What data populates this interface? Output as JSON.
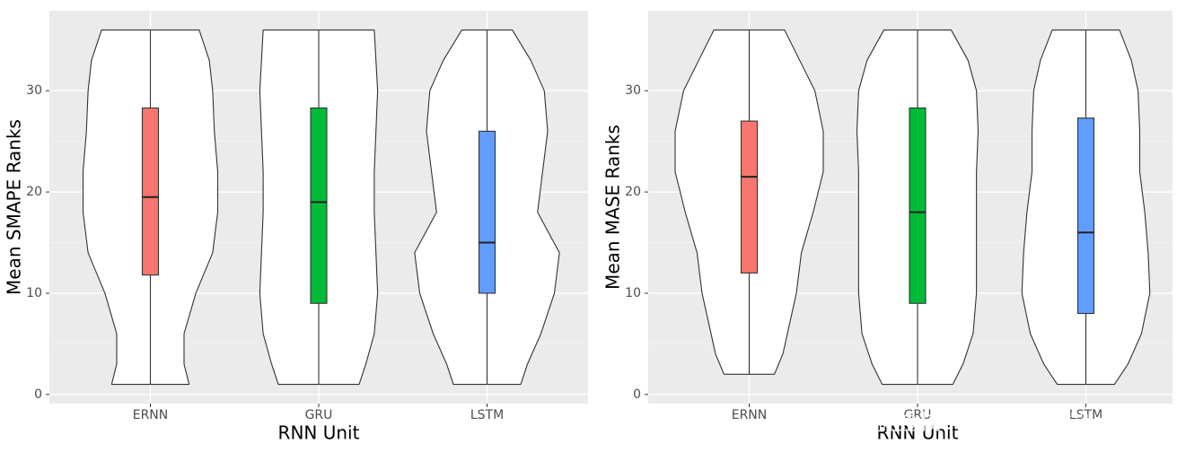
{
  "chart_data": [
    {
      "type": "violin",
      "ylabel": "Mean SMAPE Ranks",
      "xlabel": "RNN Unit",
      "categories": [
        "ERNN",
        "GRU",
        "LSTM"
      ],
      "colors": [
        "#F8766D",
        "#00BA38",
        "#619CFF"
      ],
      "ylim": [
        -0.9,
        37.9
      ],
      "yticks": [
        0,
        10,
        20,
        30
      ],
      "grid": true,
      "boxes": [
        {
          "min": 1,
          "q1": 11.8,
          "median": 19.5,
          "q3": 28.3,
          "max": 36
        },
        {
          "min": 1,
          "q1": 9,
          "median": 19,
          "q3": 28.3,
          "max": 36
        },
        {
          "min": 1,
          "q1": 10,
          "median": 15,
          "q3": 26,
          "max": 36
        }
      ],
      "density": [
        {
          "y": [
            1,
            3,
            6,
            10,
            14,
            18,
            22,
            26,
            30,
            33,
            36
          ],
          "width": [
            0.23,
            0.2,
            0.2,
            0.27,
            0.37,
            0.4,
            0.4,
            0.38,
            0.37,
            0.35,
            0.29
          ]
        },
        {
          "y": [
            1,
            3,
            6,
            10,
            14,
            18,
            22,
            26,
            30,
            33,
            36
          ],
          "width": [
            0.24,
            0.28,
            0.33,
            0.35,
            0.34,
            0.33,
            0.33,
            0.34,
            0.35,
            0.34,
            0.33
          ]
        },
        {
          "y": [
            1,
            3,
            6,
            10,
            14,
            18,
            22,
            26,
            30,
            33,
            36
          ],
          "width": [
            0.2,
            0.24,
            0.32,
            0.4,
            0.43,
            0.3,
            0.33,
            0.36,
            0.34,
            0.26,
            0.15
          ]
        }
      ]
    },
    {
      "type": "violin",
      "ylabel": "Mean MASE Ranks",
      "xlabel": "RNN Unit",
      "categories": [
        "ERNN",
        "GRU",
        "LSTM"
      ],
      "colors": [
        "#F8766D",
        "#00BA38",
        "#619CFF"
      ],
      "ylim": [
        -0.9,
        37.9
      ],
      "yticks": [
        0,
        10,
        20,
        30
      ],
      "grid": true,
      "boxes": [
        {
          "min": 2,
          "q1": 12,
          "median": 21.5,
          "q3": 27,
          "max": 36
        },
        {
          "min": 1,
          "q1": 9,
          "median": 18,
          "q3": 28.3,
          "max": 36
        },
        {
          "min": 1,
          "q1": 8,
          "median": 16,
          "q3": 27.3,
          "max": 36
        }
      ],
      "density": [
        {
          "y": [
            2,
            4,
            7,
            10,
            14,
            18,
            22,
            26,
            30,
            33,
            36
          ],
          "width": [
            0.15,
            0.2,
            0.24,
            0.28,
            0.31,
            0.38,
            0.44,
            0.44,
            0.39,
            0.3,
            0.21
          ]
        },
        {
          "y": [
            1,
            3,
            6,
            10,
            14,
            18,
            22,
            26,
            30,
            33,
            36
          ],
          "width": [
            0.21,
            0.27,
            0.33,
            0.35,
            0.35,
            0.35,
            0.35,
            0.36,
            0.35,
            0.3,
            0.2
          ]
        },
        {
          "y": [
            1,
            3,
            6,
            10,
            14,
            18,
            22,
            26,
            30,
            33,
            36
          ],
          "width": [
            0.17,
            0.25,
            0.33,
            0.38,
            0.37,
            0.35,
            0.32,
            0.32,
            0.31,
            0.27,
            0.2
          ]
        }
      ]
    }
  ],
  "watermark": "掘金技术社区 @ 拓端tecdat"
}
